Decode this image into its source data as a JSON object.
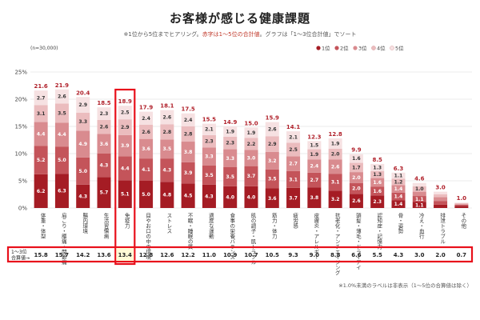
{
  "header": {
    "title": "お客様が感じる健康課題",
    "subtitle_a": "※1位から5位までヒアリング。",
    "subtitle_b": "赤字は1～5位の合計値",
    "subtitle_c": "。グラフは「1～3位合計値」でソート",
    "n_label": "(n=30,000)"
  },
  "table": {
    "row_label_1": "1～3位",
    "row_label_2": "合算値→"
  },
  "footnote": "※1.0%未満のラベルは非表示（1～5位の合算値は除く）",
  "colors": {
    "rank1": "#a51c24",
    "rank2": "#c4545a",
    "rank3": "#d98b8f",
    "rank4": "#ebbcbe",
    "rank5": "#f6e1e2",
    "highlight": "#e8101b",
    "highlight_fill": "#fff9d6"
  },
  "chart_data": {
    "type": "bar",
    "stacked": true,
    "ylim": [
      0,
      25
    ],
    "yticks": [
      "0%",
      "5%",
      "10%",
      "15%",
      "20%",
      "25%"
    ],
    "legend": [
      "1位",
      "2位",
      "3位",
      "4位",
      "5位"
    ],
    "legend_position": "top-right",
    "grid": true,
    "categories": [
      "体重・体型",
      "肩こり・腰痛・関節痛",
      "腸内環境",
      "生活習慣病",
      "免疫力",
      "目やお口の中の環境",
      "ストレス",
      "不眠・睡眠の質",
      "適度な運動",
      "食事の栄養バランス",
      "肌の調子・肌トラブル",
      "筋力・体力",
      "疲労感",
      "皮膚炎・アレルギー",
      "抗老化・アンチエイジング",
      "頭髪・薄毛・ドライアイ",
      "認知症・記憶力",
      "骨・姿勢",
      "冷え・血行",
      "排泄トラブル",
      "その他"
    ],
    "series": [
      {
        "name": "1位",
        "values": [
          6.2,
          6.3,
          4.3,
          5.7,
          5.1,
          5.0,
          4.8,
          4.5,
          4.3,
          4.0,
          4.0,
          3.6,
          3.7,
          3.8,
          3.2,
          2.6,
          2.3,
          1.4,
          1.1,
          0.6,
          0.4
        ]
      },
      {
        "name": "2位",
        "values": [
          5.2,
          5.0,
          5.0,
          4.3,
          4.4,
          4.1,
          4.3,
          3.9,
          3.5,
          3.5,
          3.7,
          3.5,
          3.1,
          2.7,
          3.1,
          2.0,
          1.6,
          1.4,
          1.1,
          0.7,
          0.2
        ]
      },
      {
        "name": "3位",
        "values": [
          4.4,
          4.4,
          4.9,
          3.6,
          3.9,
          3.6,
          3.5,
          3.8,
          3.3,
          3.3,
          3.0,
          3.2,
          2.7,
          2.4,
          2.6,
          2.0,
          1.6,
          1.4,
          0.8,
          0.7,
          0.1
        ]
      },
      {
        "name": "4位",
        "values": [
          3.1,
          3.5,
          3.3,
          2.6,
          2.9,
          2.6,
          2.8,
          2.8,
          2.3,
          2.3,
          2.2,
          2.9,
          2.5,
          1.9,
          2.0,
          1.7,
          1.3,
          1.2,
          1.0,
          0.5,
          0.2
        ]
      },
      {
        "name": "5位",
        "values": [
          2.7,
          2.6,
          2.9,
          2.3,
          2.5,
          2.4,
          2.6,
          2.4,
          2.1,
          1.9,
          1.9,
          2.6,
          2.1,
          1.5,
          1.9,
          1.6,
          1.3,
          1.1,
          0.6,
          0.5,
          0.1
        ]
      }
    ],
    "totals_1to5": [
      21.6,
      21.9,
      20.4,
      18.5,
      18.9,
      17.9,
      18.1,
      17.5,
      15.5,
      14.9,
      15.0,
      15.9,
      14.1,
      12.3,
      12.8,
      9.9,
      8.5,
      6.3,
      4.6,
      3.0,
      1.0
    ],
    "totals_1to3": [
      "15.8",
      "15.7",
      "14.2",
      "13.6",
      "13.4",
      "12.8",
      "12.6",
      "12.2",
      "11.0",
      "10.9",
      "10.7",
      "10.5",
      "9.3",
      "9.0",
      "8.8",
      "6.6",
      "5.5",
      "4.3",
      "3.0",
      "2.0",
      "0.7"
    ],
    "highlight_index": 4
  }
}
